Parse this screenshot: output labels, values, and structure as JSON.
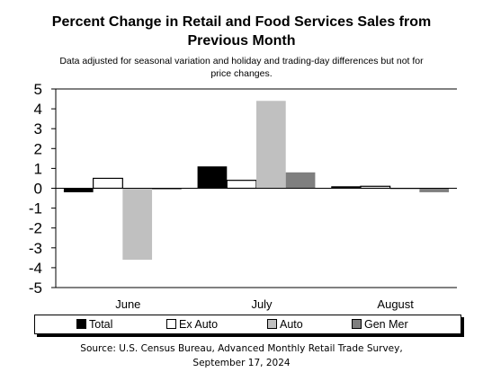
{
  "header": {
    "title_line1": "Percent Change in Retail and Food Services Sales from",
    "title_line2": "Previous Month",
    "subtitle_line1": "Data adjusted for seasonal variation and holiday and trading-day differences but not for",
    "subtitle_line2": "price changes."
  },
  "legend": {
    "items": [
      {
        "label": "Total",
        "color": "#000000"
      },
      {
        "label": "Ex Auto",
        "color": "#ffffff"
      },
      {
        "label": "Auto",
        "color": "#c0c0c0"
      },
      {
        "label": "Gen Mer",
        "color": "#7f7f7f"
      }
    ]
  },
  "footer": {
    "source_line1": "Source: U.S. Census Bureau, Advanced Monthly Retail Trade Survey,",
    "source_line2": "September 17, 2024"
  },
  "chart_data": {
    "type": "bar",
    "title": "Percent Change in Retail and Food Services Sales from Previous Month",
    "subtitle": "Data adjusted for seasonal variation and holiday and trading-day differences but not for price changes.",
    "categories": [
      "June",
      "July",
      "August"
    ],
    "series": [
      {
        "name": "Total",
        "color": "#000000",
        "values": [
          -0.2,
          1.1,
          0.1
        ]
      },
      {
        "name": "Ex Auto",
        "color": "#ffffff",
        "values": [
          0.5,
          0.4,
          0.1
        ]
      },
      {
        "name": "Auto",
        "color": "#c0c0c0",
        "values": [
          -3.6,
          4.4,
          0.0
        ]
      },
      {
        "name": "Gen Mer",
        "color": "#7f7f7f",
        "values": [
          0.0,
          0.8,
          -0.2
        ]
      }
    ],
    "ylim": [
      -5,
      5
    ],
    "yticks": [
      5,
      4,
      3,
      2,
      1,
      0,
      -1,
      -2,
      -3,
      -4,
      -5
    ],
    "grid": false,
    "legend_position": "bottom"
  }
}
